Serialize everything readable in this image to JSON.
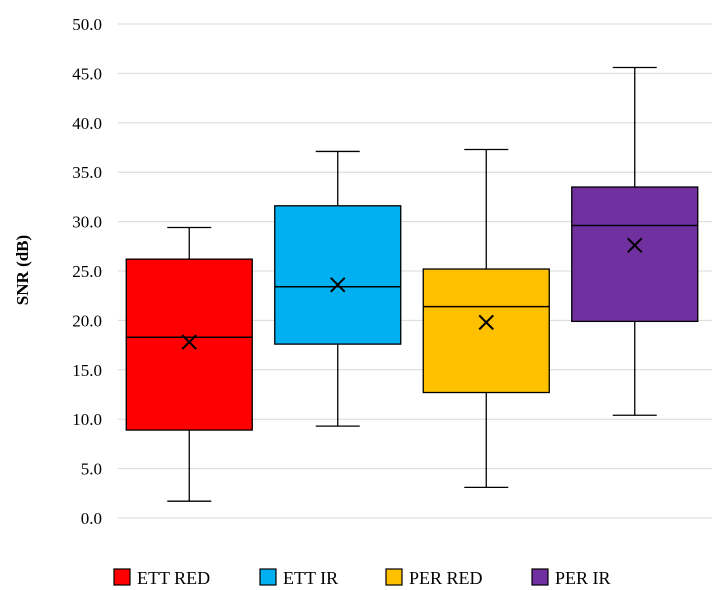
{
  "chart_data": {
    "type": "box",
    "title": "",
    "xlabel": "",
    "ylabel": "SNR (dB)",
    "ylim": [
      0,
      50
    ],
    "y_ticks": [
      "0.0",
      "5.0",
      "10.0",
      "15.0",
      "20.0",
      "25.0",
      "30.0",
      "35.0",
      "40.0",
      "45.0",
      "50.0"
    ],
    "grid": true,
    "legend_position": "bottom",
    "series": [
      {
        "name": "ETT RED",
        "color": "#ff0000",
        "min": 1.7,
        "q1": 8.9,
        "median": 18.3,
        "q3": 26.2,
        "max": 29.4,
        "mean": 17.8
      },
      {
        "name": "ETT IR",
        "color": "#00b0f0",
        "min": 9.3,
        "q1": 17.6,
        "median": 23.4,
        "q3": 31.6,
        "max": 37.1,
        "mean": 23.6
      },
      {
        "name": "PER RED",
        "color": "#ffc000",
        "min": 3.1,
        "q1": 12.7,
        "median": 21.4,
        "q3": 25.2,
        "max": 37.3,
        "mean": 19.8
      },
      {
        "name": "PER IR",
        "color": "#7030a0",
        "min": 10.4,
        "q1": 19.9,
        "median": 29.6,
        "q3": 33.5,
        "max": 45.6,
        "mean": 27.6
      }
    ]
  }
}
